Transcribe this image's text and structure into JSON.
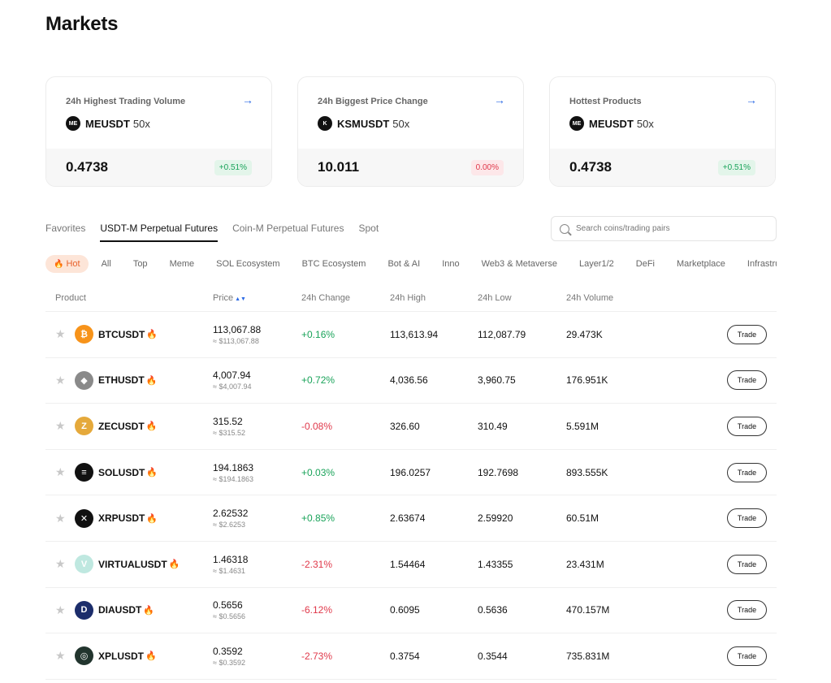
{
  "page": {
    "title": "Markets"
  },
  "cards": [
    {
      "label": "24h Highest Trading Volume",
      "symbol": "MEUSDT",
      "leverage": "50x",
      "price": "0.4738",
      "change": "+0.51%",
      "change_dir": "up",
      "icon": "ME",
      "icon_color": "#111111"
    },
    {
      "label": "24h Biggest Price Change",
      "symbol": "KSMUSDT",
      "leverage": "50x",
      "price": "10.011",
      "change": "0.00%",
      "change_dir": "flat",
      "icon": "K",
      "icon_color": "#111111"
    },
    {
      "label": "Hottest Products",
      "symbol": "MEUSDT",
      "leverage": "50x",
      "price": "0.4738",
      "change": "+0.51%",
      "change_dir": "up",
      "icon": "ME",
      "icon_color": "#111111"
    }
  ],
  "tabs": [
    "Favorites",
    "USDT-M Perpetual Futures",
    "Coin-M Perpetual Futures",
    "Spot"
  ],
  "active_tab": "USDT-M Perpetual Futures",
  "search": {
    "placeholder": "Search coins/trading pairs"
  },
  "categories": [
    "Hot",
    "All",
    "Top",
    "Meme",
    "SOL Ecosystem",
    "BTC Ecosystem",
    "Bot & AI",
    "Inno",
    "Web3 & Metaverse",
    "Layer1/2",
    "DeFi",
    "Marketplace",
    "Infrastructure"
  ],
  "table": {
    "headers": {
      "product": "Product",
      "price": "Price",
      "change": "24h Change",
      "high": "24h High",
      "low": "24h Low",
      "volume": "24h Volume"
    },
    "trade_label": "Trade",
    "rows": [
      {
        "symbol": "BTCUSDT",
        "price": "113,067.88",
        "usd": "≈ $113,067.88",
        "change": "+0.16%",
        "dir": "up",
        "high": "113,613.94",
        "low": "112,087.79",
        "volume": "29.473K",
        "icon": "₿",
        "icon_color": "#f7931a"
      },
      {
        "symbol": "ETHUSDT",
        "price": "4,007.94",
        "usd": "≈ $4,007.94",
        "change": "+0.72%",
        "dir": "up",
        "high": "4,036.56",
        "low": "3,960.75",
        "volume": "176.951K",
        "icon": "◆",
        "icon_color": "#8a8a8a"
      },
      {
        "symbol": "ZECUSDT",
        "price": "315.52",
        "usd": "≈ $315.52",
        "change": "-0.08%",
        "dir": "down",
        "high": "326.60",
        "low": "310.49",
        "volume": "5.591M",
        "icon": "Z",
        "icon_color": "#e5a93b"
      },
      {
        "symbol": "SOLUSDT",
        "price": "194.1863",
        "usd": "≈ $194.1863",
        "change": "+0.03%",
        "dir": "up",
        "high": "196.0257",
        "low": "192.7698",
        "volume": "893.555K",
        "icon": "≡",
        "icon_color": "#111111"
      },
      {
        "symbol": "XRPUSDT",
        "price": "2.62532",
        "usd": "≈ $2.6253",
        "change": "+0.85%",
        "dir": "up",
        "high": "2.63674",
        "low": "2.59920",
        "volume": "60.51M",
        "icon": "✕",
        "icon_color": "#111111"
      },
      {
        "symbol": "VIRTUALUSDT",
        "price": "1.46318",
        "usd": "≈ $1.4631",
        "change": "-2.31%",
        "dir": "down",
        "high": "1.54464",
        "low": "1.43355",
        "volume": "23.431M",
        "icon": "V",
        "icon_color": "#bfe8e0"
      },
      {
        "symbol": "DIAUSDT",
        "price": "0.5656",
        "usd": "≈ $0.5656",
        "change": "-6.12%",
        "dir": "down",
        "high": "0.6095",
        "low": "0.5636",
        "volume": "470.157M",
        "icon": "D",
        "icon_color": "#1c2d6b"
      },
      {
        "symbol": "XPLUSDT",
        "price": "0.3592",
        "usd": "≈ $0.3592",
        "change": "-2.73%",
        "dir": "down",
        "high": "0.3754",
        "low": "0.3544",
        "volume": "735.831M",
        "icon": "◎",
        "icon_color": "#22352e"
      }
    ]
  }
}
